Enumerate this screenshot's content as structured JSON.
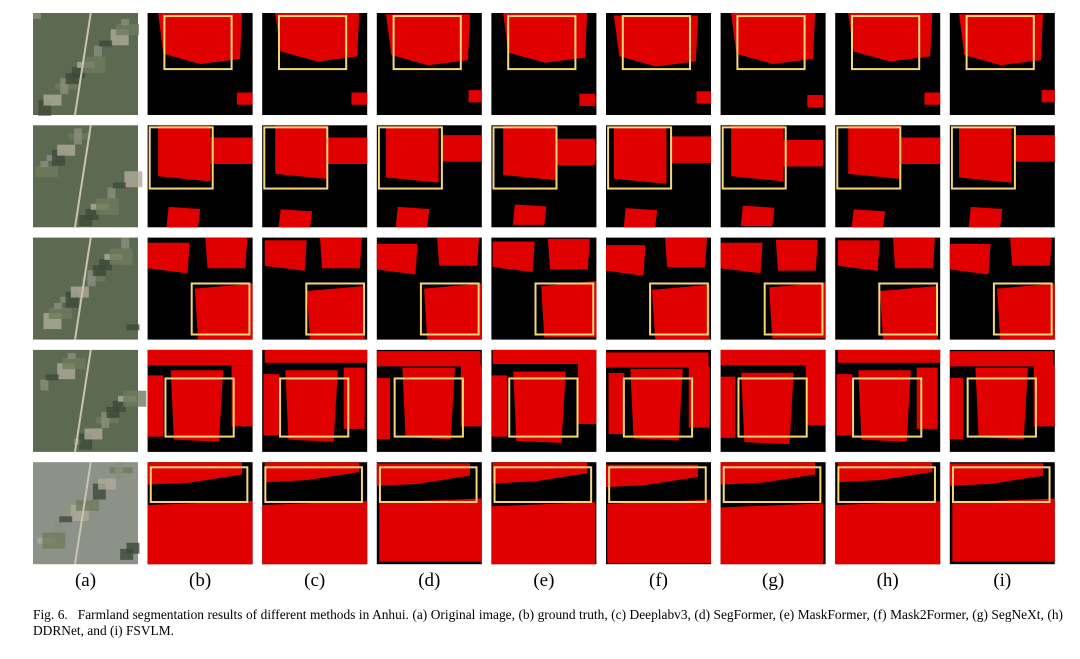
{
  "figure": {
    "columns": [
      "(a)",
      "(b)",
      "(c)",
      "(d)",
      "(e)",
      "(f)",
      "(g)",
      "(h)",
      "(i)"
    ],
    "caption": {
      "label": "Fig. 6.",
      "text": "Farmland segmentation results of different methods in Anhui. (a) Original image, (b) ground truth, (c) Deeplabv3, (d) SegFormer, (e) MaskFormer, (f) Mask2Former, (g) SegNeXt, (h) DDRNet, and (i) FSVLM."
    }
  }
}
